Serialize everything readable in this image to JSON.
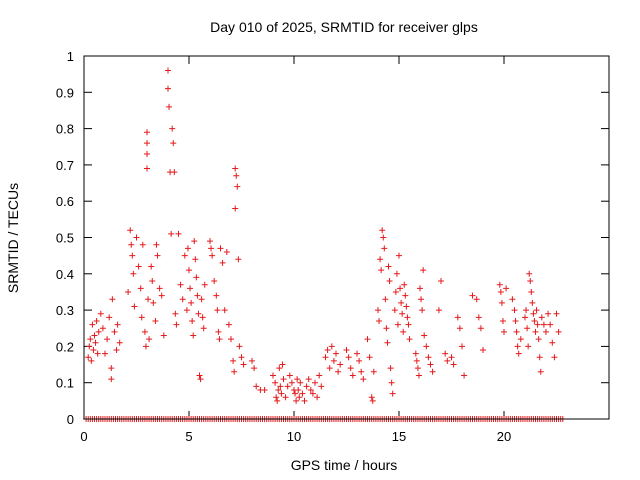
{
  "chart_data": {
    "type": "scatter",
    "title": "Day 010 of 2025, SRMTID for receiver glps",
    "xlabel": "GPS time / hours",
    "ylabel": "SRMTID / TECUs",
    "xlim": [
      0,
      25
    ],
    "ylim": [
      0,
      1
    ],
    "xticks": [
      0,
      5,
      10,
      15,
      20
    ],
    "yticks": [
      0,
      0.1,
      0.2,
      0.3,
      0.4,
      0.5,
      0.6,
      0.7,
      0.8,
      0.9,
      1
    ],
    "xtick_labels": [
      "0",
      "5",
      "10",
      "15",
      "20"
    ],
    "ytick_labels": [
      "0",
      "0.1",
      "0.2",
      "0.3",
      "0.4",
      "0.5",
      "0.6",
      "0.7",
      "0.8",
      "0.9",
      "1"
    ],
    "marker": "+",
    "color": "#e41a1c",
    "zero_band": {
      "from": 0.1,
      "to": 22.8,
      "step": 0.1,
      "y": 0
    },
    "series": [
      {
        "name": "SRMTID",
        "points": [
          [
            0.2,
            0.17
          ],
          [
            0.25,
            0.2
          ],
          [
            0.3,
            0.22
          ],
          [
            0.35,
            0.16
          ],
          [
            0.4,
            0.26
          ],
          [
            0.45,
            0.19
          ],
          [
            0.5,
            0.23
          ],
          [
            0.55,
            0.21
          ],
          [
            0.6,
            0.27
          ],
          [
            0.65,
            0.18
          ],
          [
            0.7,
            0.24
          ],
          [
            0.8,
            0.29
          ],
          [
            0.9,
            0.25
          ],
          [
            1.0,
            0.18
          ],
          [
            1.1,
            0.22
          ],
          [
            1.2,
            0.28
          ],
          [
            1.3,
            0.14
          ],
          [
            1.3,
            0.11
          ],
          [
            1.35,
            0.33
          ],
          [
            1.45,
            0.24
          ],
          [
            1.55,
            0.19
          ],
          [
            1.6,
            0.26
          ],
          [
            1.7,
            0.21
          ],
          [
            2.1,
            0.35
          ],
          [
            2.2,
            0.52
          ],
          [
            2.25,
            0.48
          ],
          [
            2.3,
            0.45
          ],
          [
            2.35,
            0.4
          ],
          [
            2.4,
            0.31
          ],
          [
            2.5,
            0.5
          ],
          [
            2.6,
            0.42
          ],
          [
            2.7,
            0.36
          ],
          [
            2.75,
            0.28
          ],
          [
            2.8,
            0.48
          ],
          [
            2.9,
            0.24
          ],
          [
            2.95,
            0.2
          ],
          [
            3.0,
            0.79
          ],
          [
            3.0,
            0.76
          ],
          [
            3.0,
            0.73
          ],
          [
            3.0,
            0.69
          ],
          [
            3.05,
            0.33
          ],
          [
            3.1,
            0.22
          ],
          [
            3.2,
            0.42
          ],
          [
            3.25,
            0.38
          ],
          [
            3.3,
            0.32
          ],
          [
            3.4,
            0.27
          ],
          [
            3.45,
            0.48
          ],
          [
            3.5,
            0.45
          ],
          [
            3.6,
            0.36
          ],
          [
            3.7,
            0.34
          ],
          [
            3.8,
            0.23
          ],
          [
            4.0,
            0.96
          ],
          [
            4.0,
            0.91
          ],
          [
            4.05,
            0.86
          ],
          [
            4.1,
            0.68
          ],
          [
            4.15,
            0.51
          ],
          [
            4.2,
            0.8
          ],
          [
            4.25,
            0.76
          ],
          [
            4.3,
            0.68
          ],
          [
            4.35,
            0.29
          ],
          [
            4.4,
            0.26
          ],
          [
            4.5,
            0.51
          ],
          [
            4.6,
            0.37
          ],
          [
            4.7,
            0.33
          ],
          [
            4.8,
            0.45
          ],
          [
            4.9,
            0.3
          ],
          [
            4.95,
            0.47
          ],
          [
            5.0,
            0.41
          ],
          [
            5.05,
            0.36
          ],
          [
            5.1,
            0.32
          ],
          [
            5.15,
            0.27
          ],
          [
            5.2,
            0.23
          ],
          [
            5.25,
            0.49
          ],
          [
            5.3,
            0.44
          ],
          [
            5.35,
            0.39
          ],
          [
            5.4,
            0.34
          ],
          [
            5.45,
            0.29
          ],
          [
            5.5,
            0.12
          ],
          [
            5.55,
            0.11
          ],
          [
            5.6,
            0.33
          ],
          [
            5.65,
            0.28
          ],
          [
            5.7,
            0.25
          ],
          [
            5.75,
            0.37
          ],
          [
            6.0,
            0.49
          ],
          [
            6.05,
            0.47
          ],
          [
            6.1,
            0.45
          ],
          [
            6.2,
            0.38
          ],
          [
            6.3,
            0.34
          ],
          [
            6.35,
            0.3
          ],
          [
            6.4,
            0.24
          ],
          [
            6.45,
            0.22
          ],
          [
            6.5,
            0.47
          ],
          [
            6.6,
            0.43
          ],
          [
            6.7,
            0.3
          ],
          [
            6.8,
            0.46
          ],
          [
            6.9,
            0.26
          ],
          [
            7.0,
            0.22
          ],
          [
            7.1,
            0.16
          ],
          [
            7.15,
            0.13
          ],
          [
            7.2,
            0.69
          ],
          [
            7.25,
            0.67
          ],
          [
            7.3,
            0.64
          ],
          [
            7.2,
            0.58
          ],
          [
            7.35,
            0.44
          ],
          [
            7.4,
            0.2
          ],
          [
            7.5,
            0.17
          ],
          [
            7.6,
            0.15
          ],
          [
            8.0,
            0.16
          ],
          [
            8.1,
            0.14
          ],
          [
            8.2,
            0.09
          ],
          [
            8.4,
            0.08
          ],
          [
            8.6,
            0.08
          ],
          [
            9.0,
            0.12
          ],
          [
            9.1,
            0.1
          ],
          [
            9.15,
            0.06
          ],
          [
            9.2,
            0.05
          ],
          [
            9.25,
            0.08
          ],
          [
            9.3,
            0.14
          ],
          [
            9.35,
            0.09
          ],
          [
            9.4,
            0.07
          ],
          [
            9.45,
            0.15
          ],
          [
            9.5,
            0.11
          ],
          [
            9.6,
            0.06
          ],
          [
            9.7,
            0.09
          ],
          [
            9.8,
            0.12
          ],
          [
            9.9,
            0.1
          ],
          [
            10.0,
            0.08
          ],
          [
            10.05,
            0.07
          ],
          [
            10.1,
            0.05
          ],
          [
            10.15,
            0.11
          ],
          [
            10.2,
            0.08
          ],
          [
            10.25,
            0.06
          ],
          [
            10.3,
            0.1
          ],
          [
            10.4,
            0.07
          ],
          [
            10.5,
            0.05
          ],
          [
            10.6,
            0.09
          ],
          [
            10.7,
            0.11
          ],
          [
            10.8,
            0.08
          ],
          [
            10.9,
            0.07
          ],
          [
            11.0,
            0.1
          ],
          [
            11.1,
            0.06
          ],
          [
            11.2,
            0.12
          ],
          [
            11.3,
            0.09
          ],
          [
            11.5,
            0.17
          ],
          [
            11.6,
            0.19
          ],
          [
            11.7,
            0.14
          ],
          [
            11.8,
            0.2
          ],
          [
            11.9,
            0.16
          ],
          [
            12.0,
            0.18
          ],
          [
            12.1,
            0.13
          ],
          [
            12.2,
            0.15
          ],
          [
            12.5,
            0.19
          ],
          [
            12.6,
            0.17
          ],
          [
            12.7,
            0.14
          ],
          [
            12.8,
            0.12
          ],
          [
            13.0,
            0.18
          ],
          [
            13.1,
            0.16
          ],
          [
            13.2,
            0.13
          ],
          [
            13.3,
            0.11
          ],
          [
            13.5,
            0.22
          ],
          [
            13.6,
            0.17
          ],
          [
            13.7,
            0.06
          ],
          [
            13.75,
            0.05
          ],
          [
            13.8,
            0.13
          ],
          [
            14.0,
            0.3
          ],
          [
            14.05,
            0.27
          ],
          [
            14.1,
            0.44
          ],
          [
            14.15,
            0.41
          ],
          [
            14.2,
            0.52
          ],
          [
            14.25,
            0.5
          ],
          [
            14.3,
            0.47
          ],
          [
            14.35,
            0.33
          ],
          [
            14.4,
            0.25
          ],
          [
            14.45,
            0.21
          ],
          [
            14.5,
            0.42
          ],
          [
            14.55,
            0.38
          ],
          [
            14.6,
            0.14
          ],
          [
            14.65,
            0.1
          ],
          [
            14.7,
            0.07
          ],
          [
            14.8,
            0.3
          ],
          [
            14.85,
            0.35
          ],
          [
            14.9,
            0.4
          ],
          [
            14.95,
            0.26
          ],
          [
            15.0,
            0.45
          ],
          [
            15.05,
            0.36
          ],
          [
            15.1,
            0.32
          ],
          [
            15.15,
            0.29
          ],
          [
            15.2,
            0.24
          ],
          [
            15.25,
            0.37
          ],
          [
            15.3,
            0.34
          ],
          [
            15.35,
            0.31
          ],
          [
            15.4,
            0.28
          ],
          [
            15.45,
            0.26
          ],
          [
            15.5,
            0.22
          ],
          [
            15.8,
            0.18
          ],
          [
            15.85,
            0.16
          ],
          [
            15.9,
            0.14
          ],
          [
            15.95,
            0.12
          ],
          [
            16.0,
            0.36
          ],
          [
            16.05,
            0.33
          ],
          [
            16.1,
            0.3
          ],
          [
            16.15,
            0.41
          ],
          [
            16.2,
            0.23
          ],
          [
            16.3,
            0.2
          ],
          [
            16.4,
            0.17
          ],
          [
            16.5,
            0.15
          ],
          [
            16.6,
            0.13
          ],
          [
            16.9,
            0.3
          ],
          [
            17.0,
            0.38
          ],
          [
            17.2,
            0.18
          ],
          [
            17.3,
            0.16
          ],
          [
            17.5,
            0.17
          ],
          [
            17.6,
            0.15
          ],
          [
            17.8,
            0.28
          ],
          [
            17.9,
            0.25
          ],
          [
            18.0,
            0.2
          ],
          [
            18.1,
            0.12
          ],
          [
            18.5,
            0.34
          ],
          [
            18.7,
            0.33
          ],
          [
            18.8,
            0.28
          ],
          [
            18.9,
            0.25
          ],
          [
            19.0,
            0.19
          ],
          [
            19.8,
            0.37
          ],
          [
            19.85,
            0.35
          ],
          [
            19.9,
            0.32
          ],
          [
            19.95,
            0.27
          ],
          [
            20.0,
            0.24
          ],
          [
            20.1,
            0.36
          ],
          [
            20.4,
            0.33
          ],
          [
            20.5,
            0.3
          ],
          [
            20.55,
            0.27
          ],
          [
            20.6,
            0.24
          ],
          [
            20.65,
            0.2
          ],
          [
            20.7,
            0.18
          ],
          [
            20.8,
            0.22
          ],
          [
            21.0,
            0.28
          ],
          [
            21.05,
            0.3
          ],
          [
            21.1,
            0.25
          ],
          [
            21.15,
            0.2
          ],
          [
            21.2,
            0.4
          ],
          [
            21.25,
            0.38
          ],
          [
            21.3,
            0.35
          ],
          [
            21.35,
            0.32
          ],
          [
            21.4,
            0.29
          ],
          [
            21.45,
            0.27
          ],
          [
            21.5,
            0.24
          ],
          [
            21.55,
            0.3
          ],
          [
            21.6,
            0.26
          ],
          [
            21.65,
            0.22
          ],
          [
            21.7,
            0.17
          ],
          [
            21.75,
            0.13
          ],
          [
            21.8,
            0.28
          ],
          [
            21.9,
            0.26
          ],
          [
            22.0,
            0.24
          ],
          [
            22.1,
            0.29
          ],
          [
            22.2,
            0.26
          ],
          [
            22.3,
            0.21
          ],
          [
            22.4,
            0.17
          ],
          [
            22.5,
            0.29
          ],
          [
            22.6,
            0.24
          ]
        ]
      }
    ]
  }
}
